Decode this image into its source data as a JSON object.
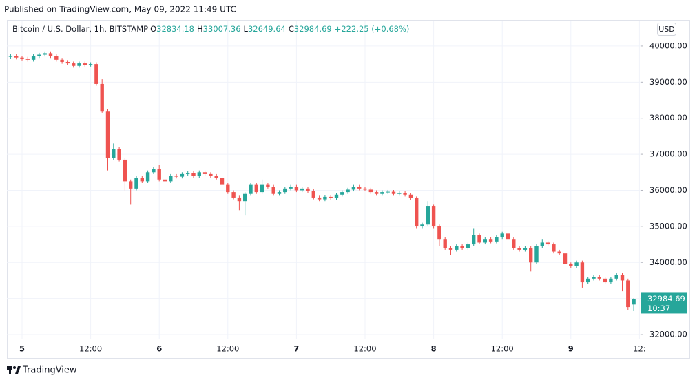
{
  "header": {
    "published": "Published on TradingView.com, May 09, 2022 11:49 UTC"
  },
  "footer": {
    "brand": "TradingView"
  },
  "chart_data": {
    "type": "candlestick",
    "title": "Bitcoin / U.S. Dollar, 1h, BITSTAMP",
    "ohlc_letters": [
      "O",
      "H",
      "L",
      "C"
    ],
    "change_label": "+222.25 (+0.68%)",
    "currency": "USD",
    "countdown": "10:37",
    "up_color": "#26a69a",
    "down_color": "#ef5350",
    "grid": true,
    "categories": [
      null,
      null,
      "5",
      null,
      null,
      null,
      null,
      null,
      null,
      null,
      null,
      null,
      null,
      null,
      "12:00",
      null,
      null,
      null,
      null,
      null,
      null,
      null,
      null,
      null,
      null,
      null,
      "6",
      null,
      null,
      null,
      null,
      null,
      null,
      null,
      null,
      null,
      null,
      null,
      "12:00",
      null,
      null,
      null,
      null,
      null,
      null,
      null,
      null,
      null,
      null,
      null,
      "7",
      null,
      null,
      null,
      null,
      null,
      null,
      null,
      null,
      null,
      null,
      null,
      "12:00",
      null,
      null,
      null,
      null,
      null,
      null,
      null,
      null,
      null,
      null,
      null,
      "8",
      null,
      null,
      null,
      null,
      null,
      null,
      null,
      null,
      null,
      null,
      null,
      "12:00",
      null,
      null,
      null,
      null,
      null,
      null,
      null,
      null,
      null,
      null,
      null,
      "9",
      null,
      null,
      null,
      null,
      null,
      null,
      null,
      null,
      null,
      null,
      null,
      "12:"
    ],
    "open": [
      39700,
      39720,
      39680,
      39650,
      39620,
      39720,
      39760,
      39800,
      39720,
      39620,
      39560,
      39520,
      39450,
      39520,
      39480,
      39500,
      38950,
      38200,
      36900,
      37150,
      36850,
      36250,
      36050,
      36350,
      36250,
      36500,
      36600,
      36300,
      36250,
      36400,
      36380,
      36450,
      36480,
      36400,
      36500,
      36450,
      36400,
      36350,
      36150,
      35950,
      35800,
      35700,
      35900,
      36150,
      35950,
      36150,
      36100,
      35900,
      35950,
      36050,
      36100,
      36000,
      36050,
      35980,
      35800,
      35750,
      35820,
      35780,
      35880,
      35950,
      36020,
      36100,
      36050,
      36020,
      35950,
      35900,
      35950,
      35960,
      35900,
      35920,
      35880,
      35780,
      35000,
      35050,
      35550,
      35000,
      34650,
      34400,
      34350,
      34450,
      34400,
      34500,
      34750,
      34550,
      34650,
      34580,
      34700,
      34800,
      34650,
      34400,
      34350,
      34400,
      34000,
      34450,
      34550,
      34500,
      34300,
      34250,
      33950,
      33900,
      34000,
      33450,
      33550,
      33600,
      33550,
      33450,
      33550,
      33650,
      33500,
      32834.18,
      null
    ],
    "high": [
      39770,
      39770,
      39730,
      39700,
      39770,
      39810,
      39850,
      39850,
      39770,
      39670,
      39610,
      39570,
      39570,
      39570,
      39550,
      39550,
      39080,
      38250,
      37300,
      37200,
      36900,
      36300,
      36400,
      36400,
      36550,
      36650,
      36700,
      36350,
      36450,
      36450,
      36500,
      36530,
      36530,
      36550,
      36550,
      36500,
      36450,
      36400,
      36200,
      36000,
      35850,
      35950,
      36200,
      36200,
      36300,
      36200,
      36150,
      36000,
      36100,
      36150,
      36150,
      36100,
      36100,
      36030,
      35850,
      35870,
      35870,
      35930,
      36000,
      36070,
      36150,
      36150,
      36100,
      36070,
      36000,
      36000,
      36010,
      36010,
      35970,
      35970,
      35930,
      35830,
      35100,
      35700,
      35600,
      35050,
      34700,
      34450,
      34500,
      34500,
      34550,
      34950,
      34800,
      34700,
      34700,
      34750,
      34850,
      34850,
      34700,
      34450,
      34450,
      34450,
      34500,
      34650,
      34600,
      34550,
      34350,
      34300,
      34000,
      34050,
      34050,
      33600,
      33650,
      33650,
      33600,
      33600,
      33700,
      33700,
      33550,
      33007.36,
      null
    ],
    "low": [
      39650,
      39630,
      39600,
      39570,
      39570,
      39670,
      39710,
      39670,
      39570,
      39510,
      39470,
      39400,
      39400,
      39430,
      39430,
      38900,
      38150,
      36550,
      36850,
      36800,
      36000,
      35600,
      36000,
      36200,
      36200,
      36450,
      36250,
      36200,
      36200,
      36330,
      36330,
      36400,
      36350,
      36350,
      36400,
      36350,
      36300,
      36100,
      35900,
      35750,
      35450,
      35300,
      35850,
      35900,
      35900,
      36050,
      35850,
      35850,
      35900,
      36000,
      35950,
      35950,
      35930,
      35750,
      35700,
      35700,
      35730,
      35730,
      35830,
      35900,
      35970,
      36000,
      35970,
      35900,
      35850,
      35850,
      35900,
      35850,
      35850,
      35830,
      35730,
      34950,
      34950,
      35000,
      34950,
      34450,
      34350,
      34200,
      34300,
      34350,
      34350,
      34450,
      34500,
      34500,
      34530,
      34530,
      34650,
      34600,
      34350,
      34300,
      34300,
      33750,
      33950,
      34400,
      34450,
      34250,
      34200,
      33900,
      33850,
      33850,
      33300,
      33400,
      33500,
      33500,
      33400,
      33400,
      33500,
      33200,
      32680,
      32649.64,
      null
    ],
    "close": [
      39720,
      39680,
      39650,
      39620,
      39720,
      39760,
      39800,
      39720,
      39620,
      39560,
      39520,
      39450,
      39520,
      39480,
      39500,
      38950,
      38200,
      36900,
      37150,
      36850,
      36250,
      36050,
      36350,
      36250,
      36500,
      36600,
      36300,
      36250,
      36400,
      36380,
      36450,
      36480,
      36400,
      36500,
      36450,
      36400,
      36350,
      36150,
      35950,
      35800,
      35700,
      35900,
      36150,
      35950,
      36150,
      36100,
      35900,
      35950,
      36050,
      36100,
      36000,
      36050,
      35980,
      35800,
      35750,
      35820,
      35780,
      35880,
      35950,
      36020,
      36100,
      36050,
      36020,
      35950,
      35900,
      35950,
      35960,
      35900,
      35920,
      35880,
      35780,
      35000,
      35050,
      35550,
      35000,
      34650,
      34400,
      34350,
      34450,
      34400,
      34500,
      34750,
      34550,
      34650,
      34580,
      34700,
      34800,
      34650,
      34400,
      34350,
      34400,
      34000,
      34450,
      34550,
      34500,
      34300,
      34250,
      33950,
      33900,
      34000,
      33450,
      33550,
      33600,
      33550,
      33450,
      33550,
      33650,
      33500,
      32762.44,
      32984.69,
      null
    ],
    "ylim": [
      31886,
      40705
    ],
    "yticks": [
      {
        "value": 32000,
        "label": "32000.00"
      },
      {
        "value": 33000,
        "label": "33000.00"
      },
      {
        "value": 34000,
        "label": "34000.00"
      },
      {
        "value": 35000,
        "label": "35000.00"
      },
      {
        "value": 36000,
        "label": "36000.00"
      },
      {
        "value": 37000,
        "label": "37000.00"
      },
      {
        "value": 38000,
        "label": "38000.00"
      },
      {
        "value": 39000,
        "label": "39000.00"
      },
      {
        "value": 40000,
        "label": "40000.00"
      }
    ]
  }
}
